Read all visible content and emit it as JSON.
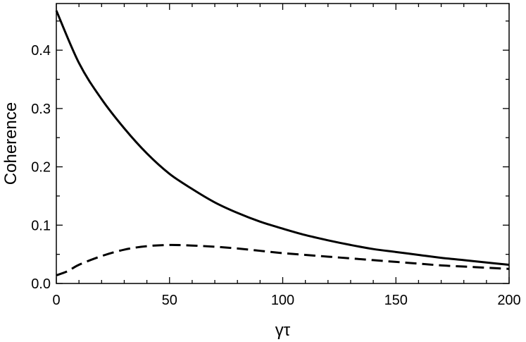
{
  "chart_data": {
    "type": "line",
    "xlabel": "γτ",
    "ylabel": "Coherence",
    "xlim": [
      0,
      200
    ],
    "ylim": [
      0,
      0.48
    ],
    "x_ticks": [
      0,
      50,
      100,
      150,
      200
    ],
    "x_tick_labels": [
      "0",
      "50",
      "100",
      "150",
      "200"
    ],
    "y_ticks": [
      0,
      0.1,
      0.2,
      0.3,
      0.4
    ],
    "y_tick_labels": [
      "0.0",
      "0.1",
      "0.2",
      "0.3",
      "0.4"
    ],
    "grid": false,
    "legend": "none",
    "series": [
      {
        "style": "solid",
        "color": "#000000",
        "x": [
          0,
          10,
          20,
          30,
          40,
          50,
          60,
          70,
          80,
          90,
          100,
          110,
          120,
          130,
          140,
          150,
          160,
          170,
          180,
          190,
          200
        ],
        "y": [
          0.468,
          0.378,
          0.316,
          0.266,
          0.223,
          0.188,
          0.162,
          0.139,
          0.121,
          0.106,
          0.094,
          0.083,
          0.074,
          0.066,
          0.059,
          0.054,
          0.049,
          0.044,
          0.04,
          0.036,
          0.032
        ]
      },
      {
        "style": "dashed",
        "color": "#000000",
        "x": [
          0,
          5,
          10,
          20,
          30,
          40,
          50,
          60,
          70,
          80,
          90,
          100,
          110,
          120,
          130,
          140,
          150,
          160,
          170,
          180,
          190,
          200
        ],
        "y": [
          0.014,
          0.021,
          0.032,
          0.047,
          0.058,
          0.064,
          0.066,
          0.065,
          0.063,
          0.06,
          0.056,
          0.052,
          0.049,
          0.046,
          0.043,
          0.04,
          0.037,
          0.034,
          0.031,
          0.029,
          0.027,
          0.025
        ]
      }
    ]
  }
}
